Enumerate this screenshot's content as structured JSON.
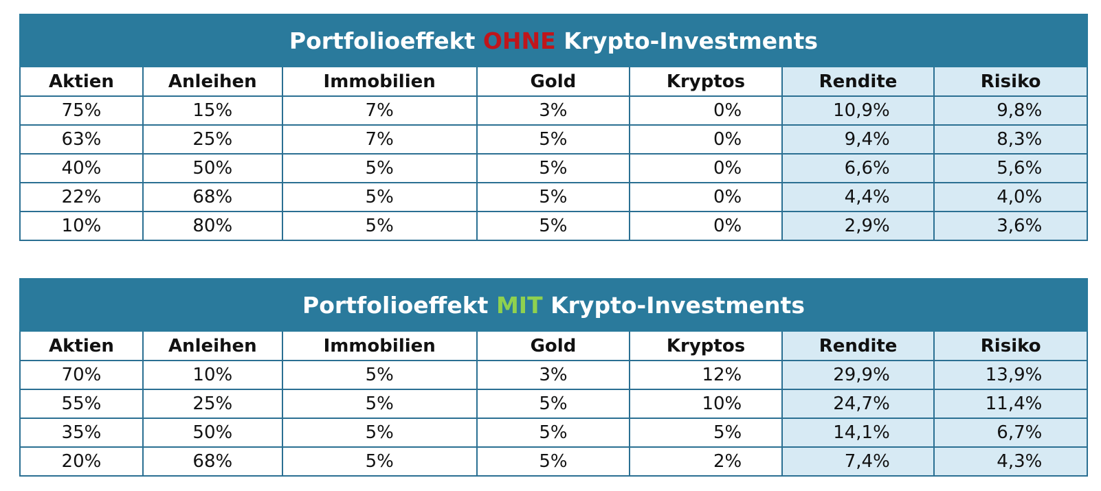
{
  "columns": [
    "Aktien",
    "Anleihen",
    "Immobilien",
    "Gold",
    "Kryptos",
    "Rendite",
    "Risiko"
  ],
  "tables": [
    {
      "title_prefix": "Portfolioeffekt ",
      "title_highlight": "OHNE",
      "title_suffix": " Krypto-Investments",
      "highlight_color": "#c0151b",
      "rows": [
        [
          "75%",
          "15%",
          "7%",
          "3%",
          "0%",
          "10,9%",
          "9,8%"
        ],
        [
          "63%",
          "25%",
          "7%",
          "5%",
          "0%",
          "9,4%",
          "8,3%"
        ],
        [
          "40%",
          "50%",
          "5%",
          "5%",
          "0%",
          "6,6%",
          "5,6%"
        ],
        [
          "22%",
          "68%",
          "5%",
          "5%",
          "0%",
          "4,4%",
          "4,0%"
        ],
        [
          "10%",
          "80%",
          "5%",
          "5%",
          "0%",
          "2,9%",
          "3,6%"
        ]
      ]
    },
    {
      "title_prefix": "Portfolioeffekt ",
      "title_highlight": "MIT",
      "title_suffix": " Krypto-Investments",
      "highlight_color": "#8fd14f",
      "rows": [
        [
          "70%",
          "10%",
          "5%",
          "3%",
          "12%",
          "29,9%",
          "13,9%"
        ],
        [
          "55%",
          "25%",
          "5%",
          "5%",
          "10%",
          "24,7%",
          "11,4%"
        ],
        [
          "35%",
          "50%",
          "5%",
          "5%",
          "5%",
          "14,1%",
          "6,7%"
        ],
        [
          "20%",
          "68%",
          "5%",
          "5%",
          "2%",
          "7,4%",
          "4,3%"
        ]
      ]
    }
  ]
}
